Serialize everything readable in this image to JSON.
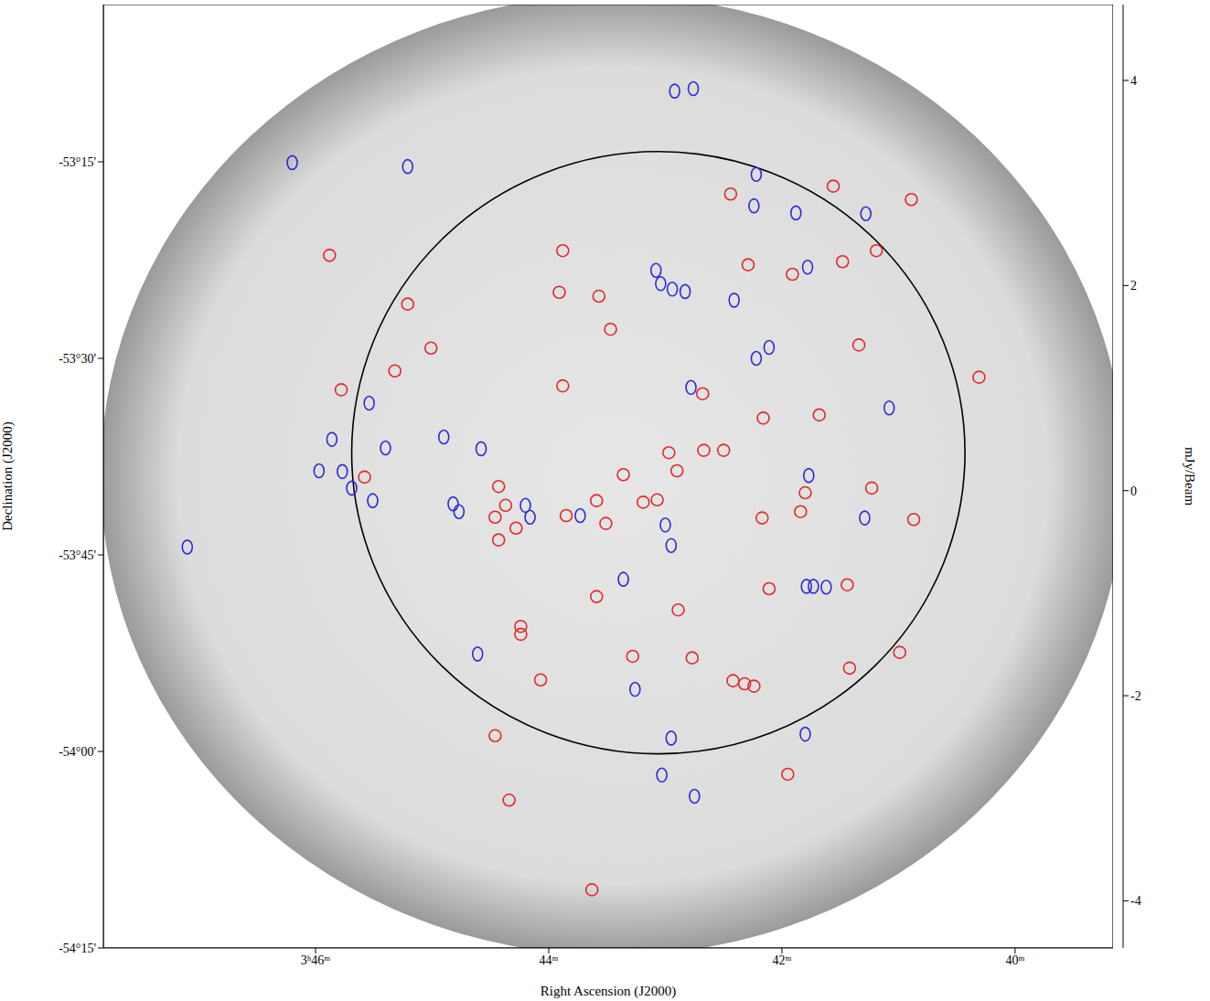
{
  "chart_data": {
    "type": "scatter",
    "x_label": "Right Ascension (J2000)",
    "y_label": "Declination (J2000)",
    "xlim": [
      47.82,
      39.16
    ],
    "xticks": [
      {
        "value": 46,
        "label": "3ʰ46ᵐ"
      },
      {
        "value": 44,
        "label": "44ᵐ"
      },
      {
        "value": 42,
        "label": "42ᵐ"
      },
      {
        "value": 40,
        "label": "40ᵐ"
      }
    ],
    "ylim": [
      -54.25,
      -53.05
    ],
    "yticks": [
      {
        "value": -54.25,
        "label": "-54°15'"
      },
      {
        "value": -54.0,
        "label": "-54°00'"
      },
      {
        "value": -53.75,
        "label": "-53°45'"
      },
      {
        "value": -53.5,
        "label": "-53°30'"
      },
      {
        "value": -53.25,
        "label": "-53°15'"
      }
    ],
    "series": [
      {
        "color": "#2b2bd6",
        "marker": "ellipse",
        "x": [
          42.92,
          42.76,
          46.2,
          45.21,
          42.22,
          42.24,
          41.88,
          41.28,
          41.78,
          43.08,
          43.04,
          42.94,
          42.83,
          42.41,
          42.11,
          42.22,
          42.78,
          45.54,
          41.08,
          45.86,
          44.9,
          45.4,
          44.58,
          45.97,
          45.77,
          41.77,
          45.69,
          45.51,
          44.82,
          44.77,
          44.2,
          44.16,
          43.73,
          41.29,
          43.0,
          42.95,
          47.1,
          43.36,
          41.79,
          41.73,
          41.62,
          44.61,
          43.26,
          42.95,
          41.8,
          43.03,
          42.75
        ],
        "y": [
          -53.16,
          -53.157,
          -53.251,
          -53.256,
          -53.266,
          -53.306,
          -53.315,
          -53.316,
          -53.384,
          -53.388,
          -53.405,
          -53.412,
          -53.415,
          -53.426,
          -53.486,
          -53.5,
          -53.537,
          -53.557,
          -53.563,
          -53.603,
          -53.6,
          -53.614,
          -53.615,
          -53.643,
          -53.644,
          -53.649,
          -53.665,
          -53.681,
          -53.685,
          -53.695,
          -53.687,
          -53.702,
          -53.7,
          -53.703,
          -53.712,
          -53.738,
          -53.74,
          -53.781,
          -53.79,
          -53.79,
          -53.791,
          -53.876,
          -53.921,
          -53.983,
          -53.978,
          -54.03,
          -54.057
        ]
      },
      {
        "color": "#e02a2a",
        "marker": "circle",
        "x": [
          42.44,
          41.56,
          40.89,
          43.88,
          45.88,
          41.19,
          42.29,
          41.91,
          41.48,
          43.91,
          43.57,
          45.21,
          43.47,
          45.01,
          41.34,
          45.32,
          40.31,
          43.88,
          45.78,
          42.68,
          42.16,
          41.68,
          42.97,
          42.67,
          42.5,
          42.9,
          43.36,
          45.58,
          41.23,
          44.43,
          41.8,
          44.37,
          44.46,
          44.28,
          43.85,
          43.59,
          43.51,
          43.19,
          43.07,
          42.17,
          41.84,
          40.87,
          44.43,
          43.59,
          42.89,
          41.44,
          42.11,
          44.24,
          44.24,
          43.28,
          42.77,
          40.99,
          44.07,
          42.42,
          42.32,
          42.24,
          41.42,
          44.46,
          41.95,
          44.34,
          43.63
        ],
        "y": [
          -53.291,
          -53.281,
          -53.298,
          -53.363,
          -53.369,
          -53.363,
          -53.381,
          -53.393,
          -53.377,
          -53.416,
          -53.421,
          -53.431,
          -53.463,
          -53.487,
          -53.483,
          -53.516,
          -53.524,
          -53.535,
          -53.54,
          -53.545,
          -53.576,
          -53.572,
          -53.62,
          -53.617,
          -53.617,
          -53.643,
          -53.648,
          -53.651,
          -53.665,
          -53.663,
          -53.671,
          -53.687,
          -53.702,
          -53.716,
          -53.7,
          -53.681,
          -53.71,
          -53.683,
          -53.68,
          -53.703,
          -53.695,
          -53.705,
          -53.731,
          -53.803,
          -53.82,
          -53.788,
          -53.793,
          -53.841,
          -53.851,
          -53.879,
          -53.881,
          -53.874,
          -53.909,
          -53.91,
          -53.914,
          -53.917,
          -53.894,
          -53.98,
          -54.029,
          -54.062,
          -54.176
        ]
      }
    ],
    "circle": {
      "x": 43.06,
      "y": -53.62,
      "radius_x": 2.63,
      "radius_y": 0.383,
      "color": "#000000"
    },
    "colorbar": {
      "label": "mJy/Beam",
      "range": [
        -4.46,
        4.74
      ],
      "ticks": [
        -4,
        -2,
        0,
        2,
        4
      ]
    }
  }
}
